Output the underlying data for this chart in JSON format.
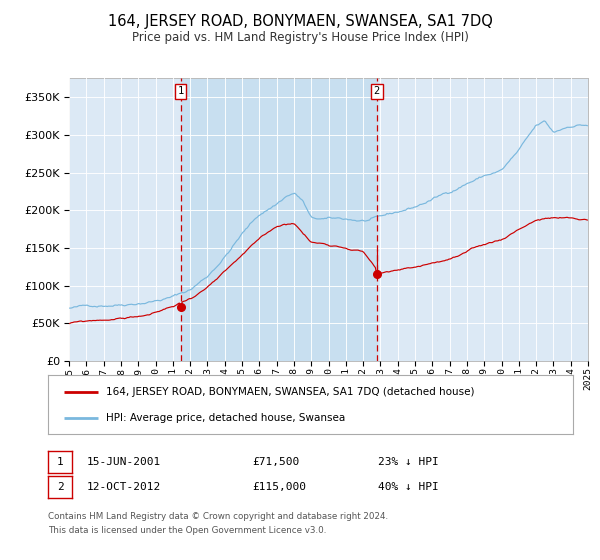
{
  "title": "164, JERSEY ROAD, BONYMAEN, SWANSEA, SA1 7DQ",
  "subtitle": "Price paid vs. HM Land Registry's House Price Index (HPI)",
  "legend_line1": "164, JERSEY ROAD, BONYMAEN, SWANSEA, SA1 7DQ (detached house)",
  "legend_line2": "HPI: Average price, detached house, Swansea",
  "marker1_date": "15-JUN-2001",
  "marker1_price": "£71,500",
  "marker1_pct": "23% ↓ HPI",
  "marker2_date": "12-OCT-2012",
  "marker2_price": "£115,000",
  "marker2_pct": "40% ↓ HPI",
  "footnote1": "Contains HM Land Registry data © Crown copyright and database right 2024.",
  "footnote2": "This data is licensed under the Open Government Licence v3.0.",
  "background_color": "#ffffff",
  "plot_bg_color": "#dce9f5",
  "between_shade_color": "#c8dff0",
  "hpi_color": "#7ab8de",
  "red_color": "#cc0000",
  "ylim": [
    0,
    375000
  ],
  "yticks": [
    0,
    50000,
    100000,
    150000,
    200000,
    250000,
    300000,
    350000
  ],
  "year_start": 1995,
  "year_end": 2025,
  "sale1_year": 2001,
  "sale1_month": 6,
  "sale1_value": 71500,
  "sale2_year": 2012,
  "sale2_month": 10,
  "sale2_value": 115000
}
